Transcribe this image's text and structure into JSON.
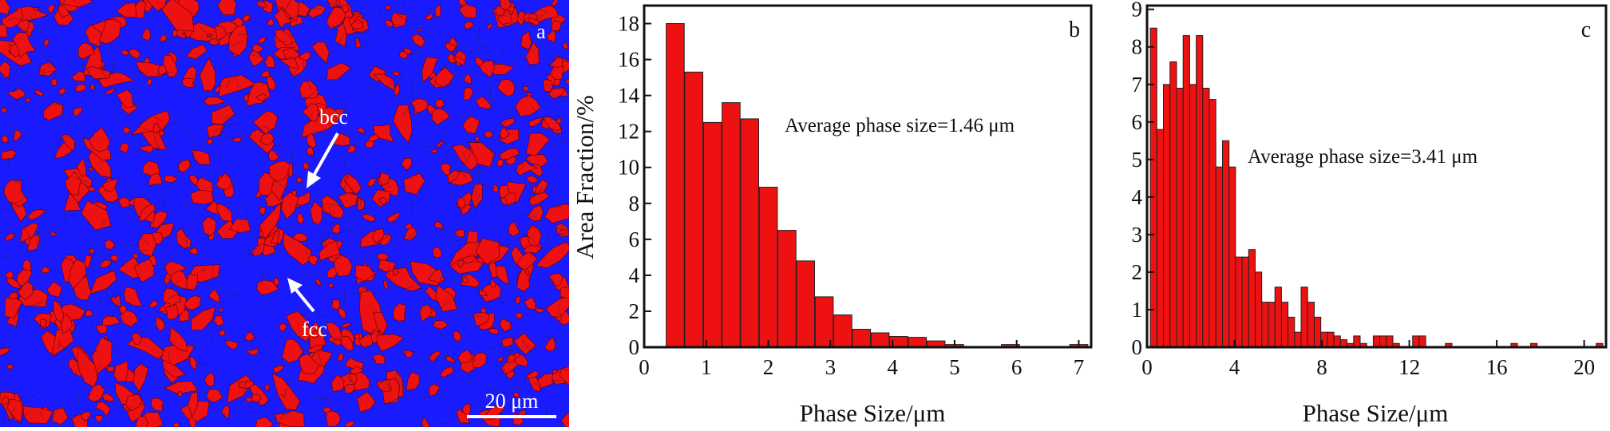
{
  "micrograph": {
    "panel_letter": "a",
    "label_bcc": "bcc",
    "label_fcc": "fcc",
    "scalebar_label": "20 μm",
    "colors": {
      "bcc_phase": "#1a1aff",
      "fcc_phase": "#ee1111",
      "boundary": "#222222"
    }
  },
  "chart_data": [
    {
      "type": "bar",
      "panel_letter": "b",
      "xlabel": "Phase Size/μm",
      "ylabel": "Area Fraction/%",
      "annotation": "Average phase size=1.46 μm",
      "xlim": [
        0,
        7.2
      ],
      "ylim": [
        0,
        19
      ],
      "xticks": [
        0,
        1,
        2,
        3,
        4,
        5,
        6,
        7
      ],
      "yticks": [
        0,
        2,
        4,
        6,
        8,
        10,
        12,
        14,
        16,
        18
      ],
      "bin_width": 0.29,
      "x": [
        0.5,
        0.8,
        1.1,
        1.4,
        1.7,
        2.0,
        2.3,
        2.6,
        2.9,
        3.2,
        3.5,
        3.8,
        4.1,
        4.4,
        4.7,
        5.0,
        5.9,
        7.0
      ],
      "values": [
        18.0,
        15.3,
        12.5,
        13.6,
        12.7,
        8.9,
        6.5,
        4.8,
        2.8,
        1.8,
        1.0,
        0.8,
        0.6,
        0.55,
        0.35,
        0.15,
        0.15,
        0.15
      ],
      "grid": false,
      "bar_color": "#ee1111"
    },
    {
      "type": "bar",
      "panel_letter": "c",
      "xlabel": "Phase Size/μm",
      "ylabel": "",
      "annotation": "Average phase size=3.41 μm",
      "xlim": [
        0,
        21
      ],
      "ylim": [
        0,
        9.1
      ],
      "xticks": [
        0,
        4,
        8,
        12,
        16,
        20
      ],
      "yticks": [
        0,
        1,
        2,
        3,
        4,
        5,
        6,
        7,
        8,
        9
      ],
      "bin_width": 0.3,
      "x": [
        0.3,
        0.6,
        0.9,
        1.2,
        1.5,
        1.8,
        2.1,
        2.4,
        2.7,
        3.0,
        3.3,
        3.6,
        3.9,
        4.2,
        4.5,
        4.8,
        5.1,
        5.4,
        5.7,
        6.0,
        6.3,
        6.6,
        6.9,
        7.2,
        7.5,
        7.8,
        8.1,
        8.4,
        8.7,
        9.0,
        9.3,
        9.6,
        9.9,
        10.5,
        10.8,
        11.1,
        11.4,
        12.3,
        12.6,
        13.8,
        16.8,
        17.7,
        20.7
      ],
      "values": [
        8.5,
        5.8,
        7.0,
        7.6,
        6.9,
        8.3,
        7.0,
        8.3,
        6.9,
        6.6,
        4.8,
        5.5,
        4.8,
        2.4,
        2.4,
        2.6,
        2.0,
        1.2,
        1.2,
        1.6,
        1.2,
        0.8,
        0.4,
        1.6,
        1.2,
        0.8,
        0.4,
        0.4,
        0.3,
        0.2,
        0.1,
        0.3,
        0.1,
        0.3,
        0.3,
        0.3,
        0.1,
        0.3,
        0.3,
        0.1,
        0.1,
        0.1,
        0.1
      ],
      "grid": false,
      "bar_color": "#ee1111"
    }
  ]
}
